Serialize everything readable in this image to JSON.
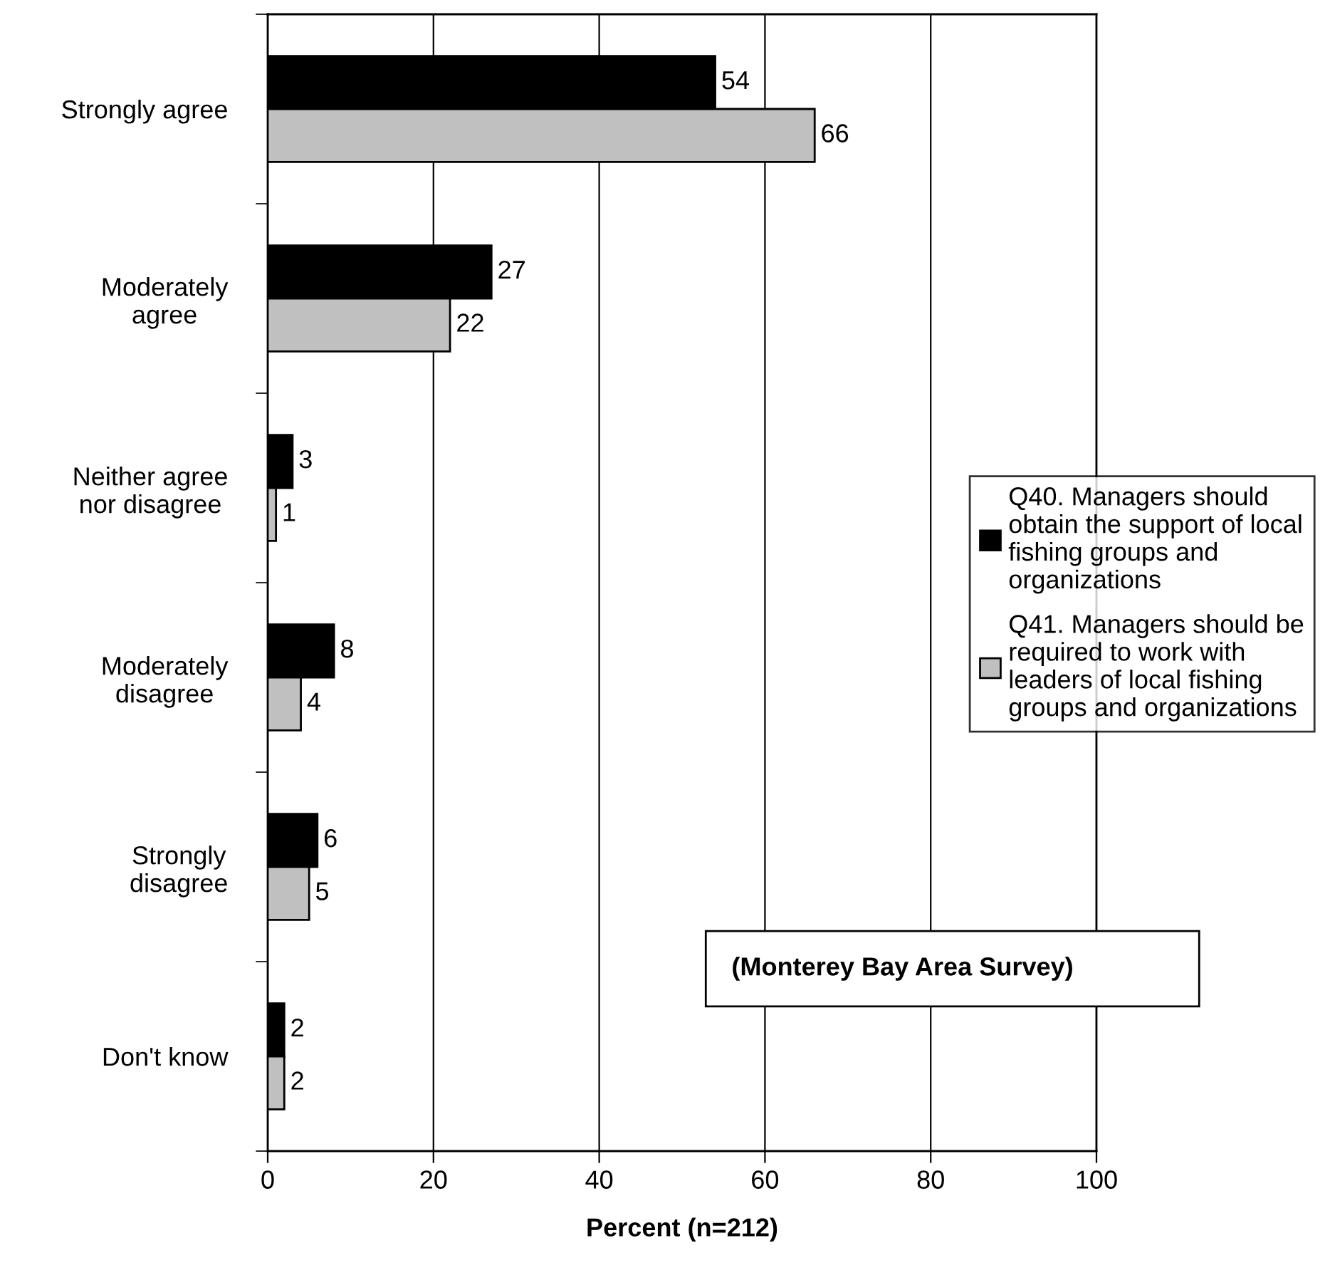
{
  "chart_data": {
    "type": "bar",
    "orientation": "horizontal",
    "xlabel": "Percent (n=212)",
    "categories": [
      "Strongly agree",
      "Moderately\nagree",
      "Neither agree\nnor disagree",
      "Moderately\ndisagree",
      "Strongly\ndisagree",
      "Don't know"
    ],
    "series": [
      {
        "name": "Q40. Managers should\nobtain the support of local\nfishing groups and\norganizations",
        "color": "#000000",
        "values": [
          54,
          27,
          3,
          8,
          6,
          2
        ]
      },
      {
        "name": "Q41. Managers should be\nrequired to work with\nleaders of local fishing\ngroups and organizations",
        "color": "#c0c0c0",
        "values": [
          66,
          22,
          1,
          4,
          5,
          2
        ]
      }
    ],
    "xlim": [
      0,
      100
    ],
    "xticks": [
      0,
      20,
      40,
      60,
      80,
      100
    ],
    "grid": "x",
    "legend": "right",
    "data_labels": true,
    "annotations": [
      "(Monterey Bay Area Survey)"
    ]
  }
}
